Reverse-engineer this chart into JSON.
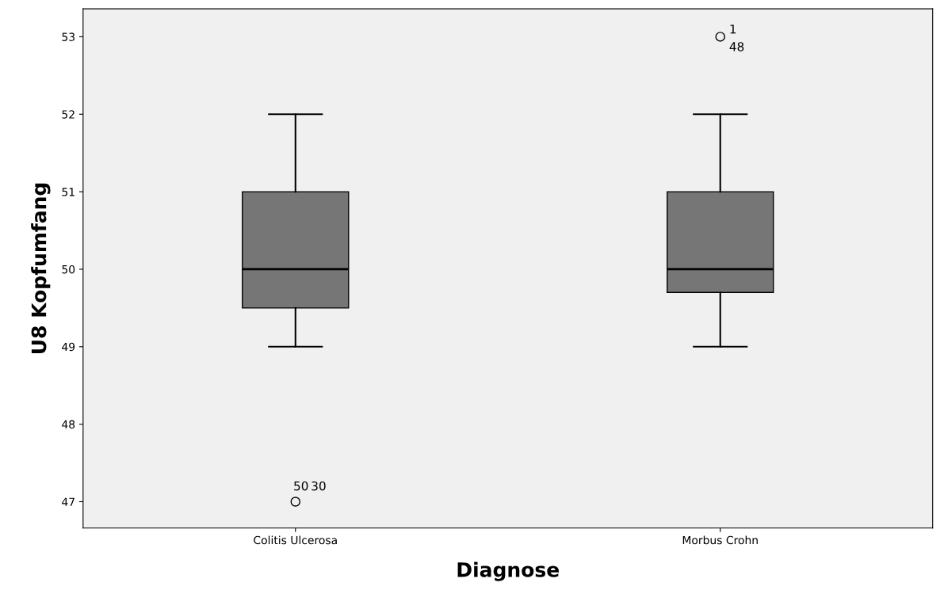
{
  "chart_data": {
    "type": "box",
    "xlabel": "Diagnose",
    "ylabel": "U8 Kopfumfang",
    "categories": [
      "Colitis Ulcerosa",
      "Morbus Crohn"
    ],
    "boxes": [
      {
        "low": 49,
        "q1": 49.5,
        "median": 50,
        "q3": 51,
        "high": 52,
        "outliers": [
          47
        ]
      },
      {
        "low": 49,
        "q1": 49.7,
        "median": 50,
        "q3": 51,
        "high": 52,
        "outliers": [
          53
        ]
      }
    ],
    "color": "#767676",
    "ylim": [
      46.66,
      53.36
    ],
    "yticks": [
      47,
      48,
      49,
      50,
      51,
      52,
      53
    ],
    "grid": false,
    "annotations": [
      "50",
      "30",
      "1",
      "48"
    ]
  }
}
